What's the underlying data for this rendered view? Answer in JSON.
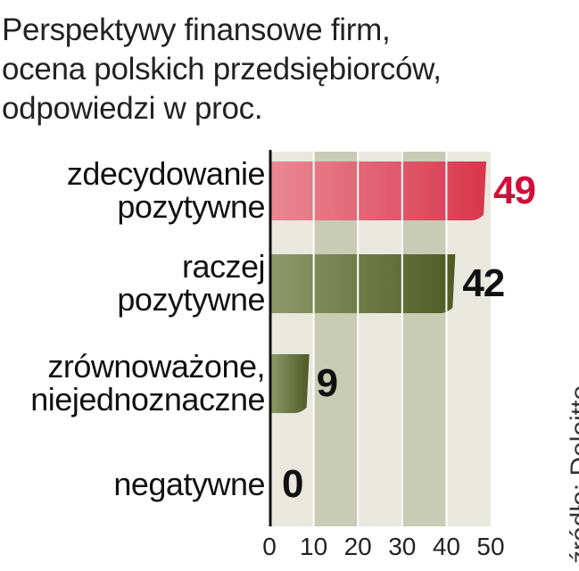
{
  "title_lines": [
    "Perspektywy finansowe firm,",
    "ocena polskich przedsiębiorców,",
    "odpowiedzi w proc."
  ],
  "source": "źródło: Deloitte",
  "colors": {
    "bar_positive_strong": "#d9364c",
    "bar_positive_strong_light": "#e98a94",
    "bar_olive_dark": "#4f5a25",
    "bar_olive_light": "#8f9a6a",
    "value_red": "#d0103a",
    "value_dark": "#111111",
    "column_light": "#e8e8de",
    "column_dark": "#c9ccb4",
    "grid": "#ffffff"
  },
  "chart_data": {
    "type": "bar",
    "orientation": "horizontal",
    "title": "Perspektywy finansowe firm, ocena polskich przedsiębiorców, odpowiedzi w proc.",
    "categories": [
      [
        "zdecydowanie",
        "pozytywne"
      ],
      [
        "raczej",
        "pozytywne"
      ],
      [
        "zrównoważone,",
        "niejednoznaczne"
      ],
      [
        "negatywne"
      ]
    ],
    "values": [
      49,
      42,
      9,
      0
    ],
    "value_labels": [
      "49",
      "42",
      "9",
      "0"
    ],
    "xlim": [
      0,
      50
    ],
    "xticks": [
      0,
      10,
      20,
      30,
      40,
      50
    ],
    "xtick_labels": [
      "0",
      "10",
      "20",
      "30",
      "40",
      "50"
    ],
    "grid": true,
    "legend": false
  }
}
